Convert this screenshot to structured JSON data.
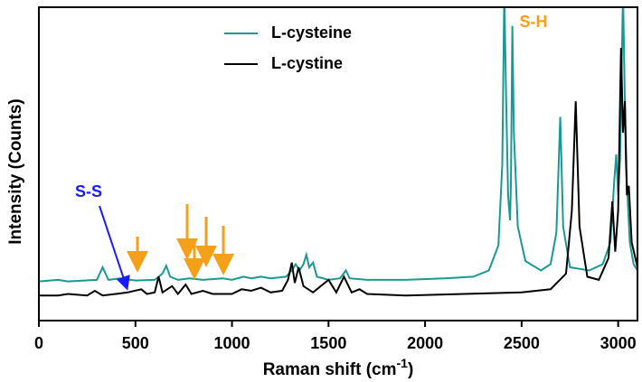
{
  "chart_data": {
    "type": "line",
    "xlabel": [
      "Raman shift (cm",
      "-1",
      ")"
    ],
    "ylabel": "Intensity (Counts)",
    "xlim": [
      0,
      3100
    ],
    "xticks": [
      0,
      500,
      1000,
      1500,
      2000,
      2500,
      3000
    ],
    "ylim": [
      0,
      100
    ],
    "annotations": [
      "S-S",
      "S-H"
    ],
    "series": [
      {
        "name": "L-cysteine",
        "color": "#1b9891",
        "x": [
          0,
          100,
          150,
          300,
          330,
          360,
          420,
          500,
          600,
          640,
          660,
          680,
          720,
          780,
          850,
          950,
          1000,
          1060,
          1100,
          1150,
          1200,
          1280,
          1310,
          1330,
          1350,
          1370,
          1385,
          1400,
          1420,
          1440,
          1500,
          1560,
          1590,
          1610,
          1700,
          1900,
          2100,
          2250,
          2330,
          2380,
          2400,
          2410,
          2420,
          2430,
          2440,
          2445,
          2452,
          2460,
          2480,
          2520,
          2600,
          2650,
          2680,
          2700,
          2715,
          2750,
          2850,
          2920,
          2960,
          2980,
          2990,
          3000,
          3010,
          3025,
          3040,
          3060,
          3080,
          3100
        ],
        "values": [
          12.5,
          13,
          12.5,
          13,
          17,
          13,
          13.5,
          12.8,
          13,
          15,
          17.5,
          14,
          13,
          13.5,
          13,
          13.5,
          13,
          14,
          13.5,
          14,
          13.5,
          14,
          16,
          18,
          16,
          18,
          21,
          17,
          18.5,
          14,
          13,
          13.5,
          16,
          13.5,
          13,
          13,
          13.5,
          14,
          16,
          24,
          50,
          105,
          70,
          40,
          32,
          45,
          94,
          60,
          30,
          19,
          16,
          18,
          28,
          65,
          30,
          17,
          16,
          18,
          25,
          45,
          53,
          40,
          52,
          105,
          50,
          25,
          18,
          16
        ]
      },
      {
        "name": "L-cystine",
        "color": "#000000",
        "x": [
          0,
          100,
          150,
          250,
          290,
          330,
          400,
          460,
          530,
          560,
          600,
          620,
          640,
          690,
          720,
          760,
          790,
          850,
          900,
          1000,
          1050,
          1100,
          1150,
          1200,
          1260,
          1290,
          1310,
          1325,
          1345,
          1370,
          1420,
          1500,
          1540,
          1580,
          1620,
          1660,
          1700,
          1900,
          2200,
          2500,
          2650,
          2730,
          2760,
          2780,
          2800,
          2840,
          2900,
          2950,
          2970,
          2985,
          3000,
          3015,
          3025,
          3035,
          3045,
          3055,
          3070,
          3100
        ],
        "values": [
          8,
          8,
          8.5,
          8,
          9.5,
          8,
          8.5,
          9,
          10,
          8.5,
          9,
          14,
          9,
          11,
          8.5,
          11.5,
          8.5,
          9.5,
          8.5,
          8.5,
          10,
          9.5,
          10.5,
          9,
          9.5,
          13,
          18.5,
          12,
          17,
          11,
          9,
          13,
          9,
          14,
          9,
          10,
          8.5,
          8,
          8.5,
          9,
          10,
          15,
          35,
          70,
          30,
          14,
          13,
          20,
          38,
          22,
          35,
          87,
          60,
          70,
          40,
          43,
          25,
          17
        ]
      }
    ]
  }
}
